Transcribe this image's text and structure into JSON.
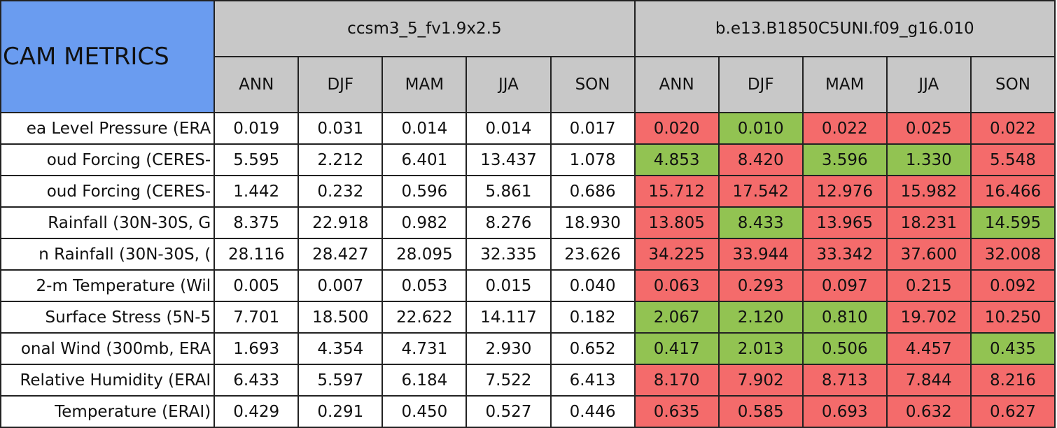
{
  "table": {
    "title": "CAM METRICS",
    "title_color": "#6a9cf0",
    "header_color": "#c8c8c8",
    "groups": [
      {
        "name": "ccsm3_5_fv1.9x2.5",
        "seasons": [
          "ANN",
          "DJF",
          "MAM",
          "JJA",
          "SON"
        ]
      },
      {
        "name": "b.e13.B1850C5UNI.f09_g16.010",
        "seasons": [
          "ANN",
          "DJF",
          "MAM",
          "JJA",
          "SON"
        ]
      }
    ],
    "rows": [
      {
        "label": "ea Level Pressure (ERA",
        "values": [
          "0.019",
          "0.031",
          "0.014",
          "0.014",
          "0.017",
          "0.020",
          "0.010",
          "0.022",
          "0.025",
          "0.022"
        ],
        "highlights": [
          "#f46b6b",
          "#92c352",
          "#f46b6b",
          "#f46b6b",
          "#f46b6b"
        ]
      },
      {
        "label": "oud Forcing (CERES-",
        "values": [
          "5.595",
          "2.212",
          "6.401",
          "13.437",
          "1.078",
          "4.853",
          "8.420",
          "3.596",
          "1.330",
          "5.548"
        ],
        "highlights": [
          "#92c352",
          "#f46b6b",
          "#92c352",
          "#92c352",
          "#f46b6b"
        ]
      },
      {
        "label": "oud Forcing (CERES-",
        "values": [
          "1.442",
          "0.232",
          "0.596",
          "5.861",
          "0.686",
          "15.712",
          "17.542",
          "12.976",
          "15.982",
          "16.466"
        ],
        "highlights": [
          "#f46b6b",
          "#f46b6b",
          "#f46b6b",
          "#f46b6b",
          "#f46b6b"
        ]
      },
      {
        "label": " Rainfall (30N-30S, G",
        "values": [
          "8.375",
          "22.918",
          "0.982",
          "8.276",
          "18.930",
          "13.805",
          "8.433",
          "13.965",
          "18.231",
          "14.595"
        ],
        "highlights": [
          "#f46b6b",
          "#92c352",
          "#f46b6b",
          "#f46b6b",
          "#92c352"
        ]
      },
      {
        "label": "n Rainfall (30N-30S, (",
        "values": [
          "28.116",
          "28.427",
          "28.095",
          "32.335",
          "23.626",
          "34.225",
          "33.944",
          "33.342",
          "37.600",
          "32.008"
        ],
        "highlights": [
          "#f46b6b",
          "#f46b6b",
          "#f46b6b",
          "#f46b6b",
          "#f46b6b"
        ]
      },
      {
        "label": "2-m Temperature (Wil",
        "values": [
          "0.005",
          "0.007",
          "0.053",
          "0.015",
          "0.040",
          "0.063",
          "0.293",
          "0.097",
          "0.215",
          "0.092"
        ],
        "highlights": [
          "#f46b6b",
          "#f46b6b",
          "#f46b6b",
          "#f46b6b",
          "#f46b6b"
        ]
      },
      {
        "label": " Surface Stress (5N-5",
        "values": [
          "7.701",
          "18.500",
          "22.622",
          "14.117",
          "0.182",
          "2.067",
          "2.120",
          "0.810",
          "19.702",
          "10.250"
        ],
        "highlights": [
          "#92c352",
          "#92c352",
          "#92c352",
          "#f46b6b",
          "#f46b6b"
        ]
      },
      {
        "label": "onal Wind (300mb, ERA",
        "values": [
          "1.693",
          "4.354",
          "4.731",
          "2.930",
          "0.652",
          "0.417",
          "2.013",
          "0.506",
          "4.457",
          "0.435"
        ],
        "highlights": [
          "#92c352",
          "#92c352",
          "#92c352",
          "#f46b6b",
          "#92c352"
        ]
      },
      {
        "label": "Relative Humidity (ERAI",
        "values": [
          "6.433",
          "5.597",
          "6.184",
          "7.522",
          "6.413",
          "8.170",
          "7.902",
          "8.713",
          "7.844",
          "8.216"
        ],
        "highlights": [
          "#f46b6b",
          "#f46b6b",
          "#f46b6b",
          "#f46b6b",
          "#f46b6b"
        ]
      },
      {
        "label": "Temperature (ERAI)",
        "values": [
          "0.429",
          "0.291",
          "0.450",
          "0.527",
          "0.446",
          "0.635",
          "0.585",
          "0.693",
          "0.632",
          "0.627"
        ],
        "highlights": [
          "#f46b6b",
          "#f46b6b",
          "#f46b6b",
          "#f46b6b",
          "#f46b6b"
        ]
      }
    ]
  }
}
